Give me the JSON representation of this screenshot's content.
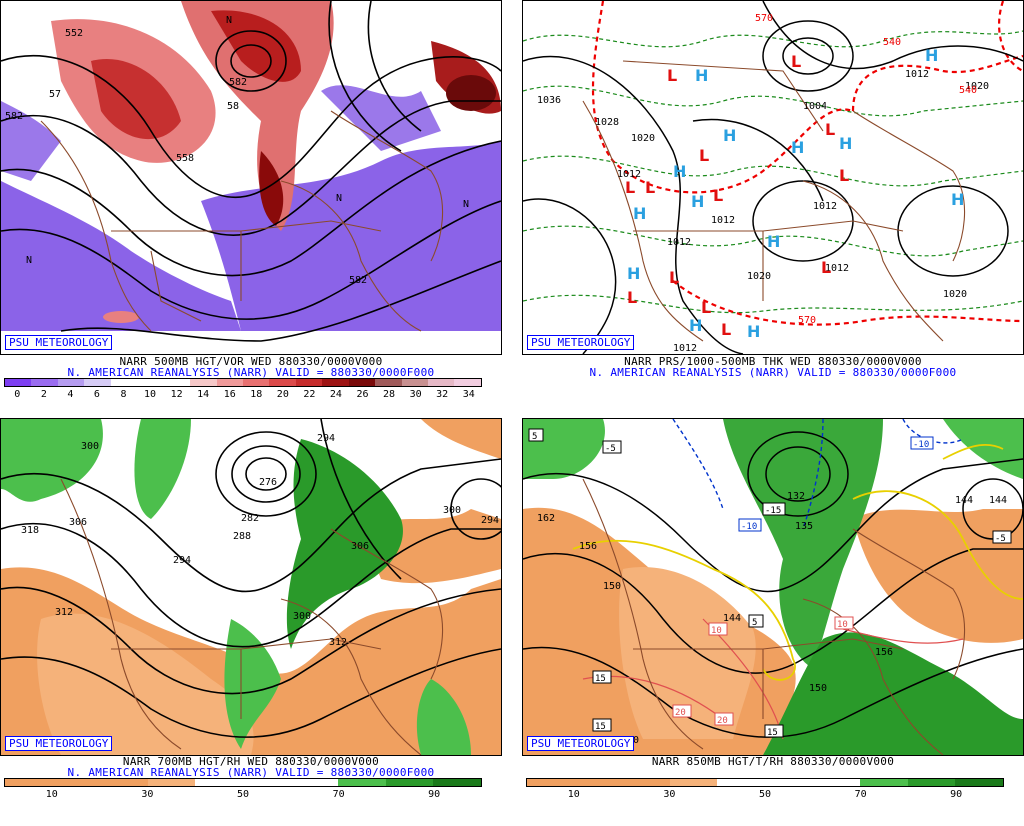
{
  "panels": [
    {
      "id": "vor",
      "brand": "PSU METEOROLOGY",
      "title_line1": "NARR 500MB HGT/VOR WED 880330/0000V000",
      "title_line2": "N. AMERICAN REANALYSIS (NARR) VALID = 880330/0000F000",
      "colorbar_labels": [
        "0",
        "2",
        "4",
        "6",
        "8",
        "10",
        "12",
        "14",
        "16",
        "18",
        "20",
        "22",
        "24",
        "26",
        "28",
        "30",
        "32",
        "34"
      ],
      "colorbar_colors": [
        "#7e3ff2",
        "#9a6cf0",
        "#b59cf0",
        "#d6ccf6",
        "#ffffff",
        "#ffffff",
        "#ffffff",
        "#f6c8c8",
        "#f09a9a",
        "#e87070",
        "#dc4a4a",
        "#c62c2c",
        "#9e1414",
        "#7a0a0a",
        "#a05a5a",
        "#c89090",
        "#e6b8c6",
        "#f2cde0"
      ],
      "contour_labels": [
        "552",
        "582",
        "582",
        "57",
        "558",
        "58",
        "582"
      ]
    },
    {
      "id": "prs",
      "brand": "PSU METEOROLOGY",
      "title_line1": "NARR PRS/1000-500MB THK WED 880330/0000V000",
      "title_line2": "N. AMERICAN REANALYSIS (NARR) VALID = 880330/0000F000",
      "pressure_labels": [
        "1036",
        "1028",
        "1020",
        "1012",
        "1012",
        "1012",
        "1020",
        "1012",
        "1020",
        "1012",
        "1020",
        "1020",
        "1012",
        "1004"
      ],
      "thickness_labels": [
        "570",
        "540",
        "570",
        "540"
      ],
      "highs": 13,
      "lows": 13
    },
    {
      "id": "rh700",
      "brand": "PSU METEOROLOGY",
      "title_line1": "NARR 700MB HGT/RH WED 880330/0000V000",
      "title_line2": "N. AMERICAN REANALYSIS (NARR) VALID = 880330/0000F000",
      "colorbar_labels": [
        "10",
        "30",
        "50",
        "70",
        "90"
      ],
      "contour_labels": [
        "318",
        "306",
        "312",
        "294",
        "288",
        "282",
        "276",
        "294",
        "300",
        "306",
        "300",
        "312",
        "300",
        "294"
      ]
    },
    {
      "id": "t850",
      "brand": "PSU METEOROLOGY",
      "title_line1": "NARR 850MB HGT/T/RH 880330/0000V000",
      "title_line2": "",
      "colorbar_labels": [
        "10",
        "30",
        "50",
        "70",
        "90"
      ],
      "contour_labels": [
        "162",
        "156",
        "150",
        "144",
        "132",
        "135",
        "150",
        "156",
        "144",
        "150",
        "144"
      ],
      "temp_labels": [
        "5",
        "-5",
        "-10",
        "-15",
        "-5",
        "-10",
        "5",
        "10",
        "10",
        "15",
        "15",
        "20",
        "20",
        "15"
      ]
    }
  ]
}
